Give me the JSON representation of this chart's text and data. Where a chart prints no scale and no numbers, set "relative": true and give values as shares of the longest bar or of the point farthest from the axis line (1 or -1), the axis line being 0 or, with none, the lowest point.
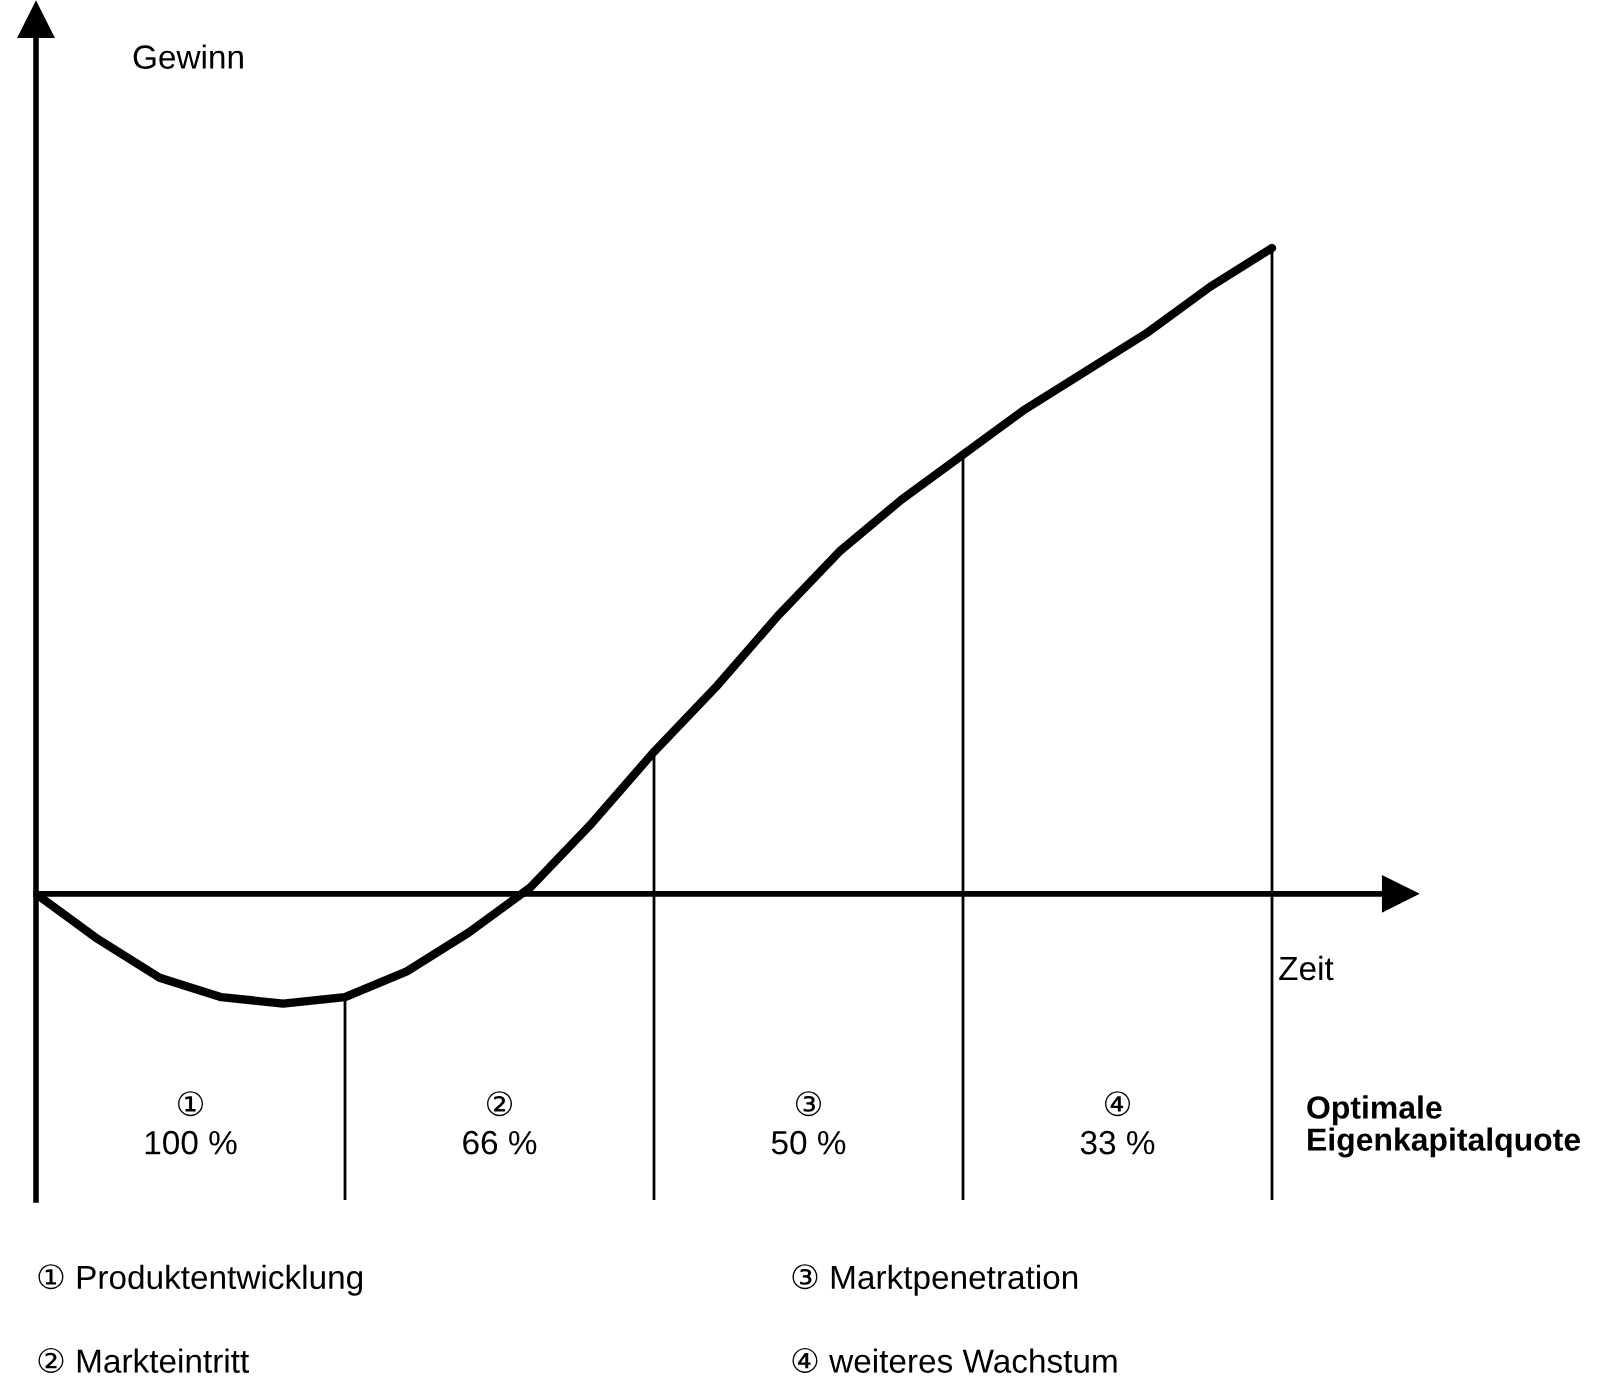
{
  "chart_data": {
    "type": "line",
    "relative": true,
    "categories": [
      null,
      null,
      null,
      null,
      null,
      null,
      null,
      null,
      null,
      null,
      null,
      null,
      null,
      null,
      null,
      null,
      null,
      null,
      null,
      null,
      null
    ],
    "series": [
      {
        "color": "#000000",
        "values": [
          0,
          -0.07,
          -0.13,
          -0.16,
          -0.17,
          -0.16,
          -0.12,
          -0.06,
          0.01,
          0.11,
          0.22,
          0.32,
          0.43,
          0.53,
          0.61,
          0.68,
          0.75,
          0.81,
          0.87,
          0.94,
          1
        ]
      }
    ],
    "xlabel": "Zeit",
    "annotations": [
      "Gewinn",
      "①\n100 %",
      "②\n66 %",
      "③\n50 %",
      "④\n33 %",
      "Optimale\nEigenkapitalquote",
      "① Produktentwicklung",
      "② Markteintritt",
      "③ Marktpenetration",
      "④ weiteres Wachstum"
    ],
    "legend": false,
    "marker": "none",
    "line_style": "solid"
  }
}
